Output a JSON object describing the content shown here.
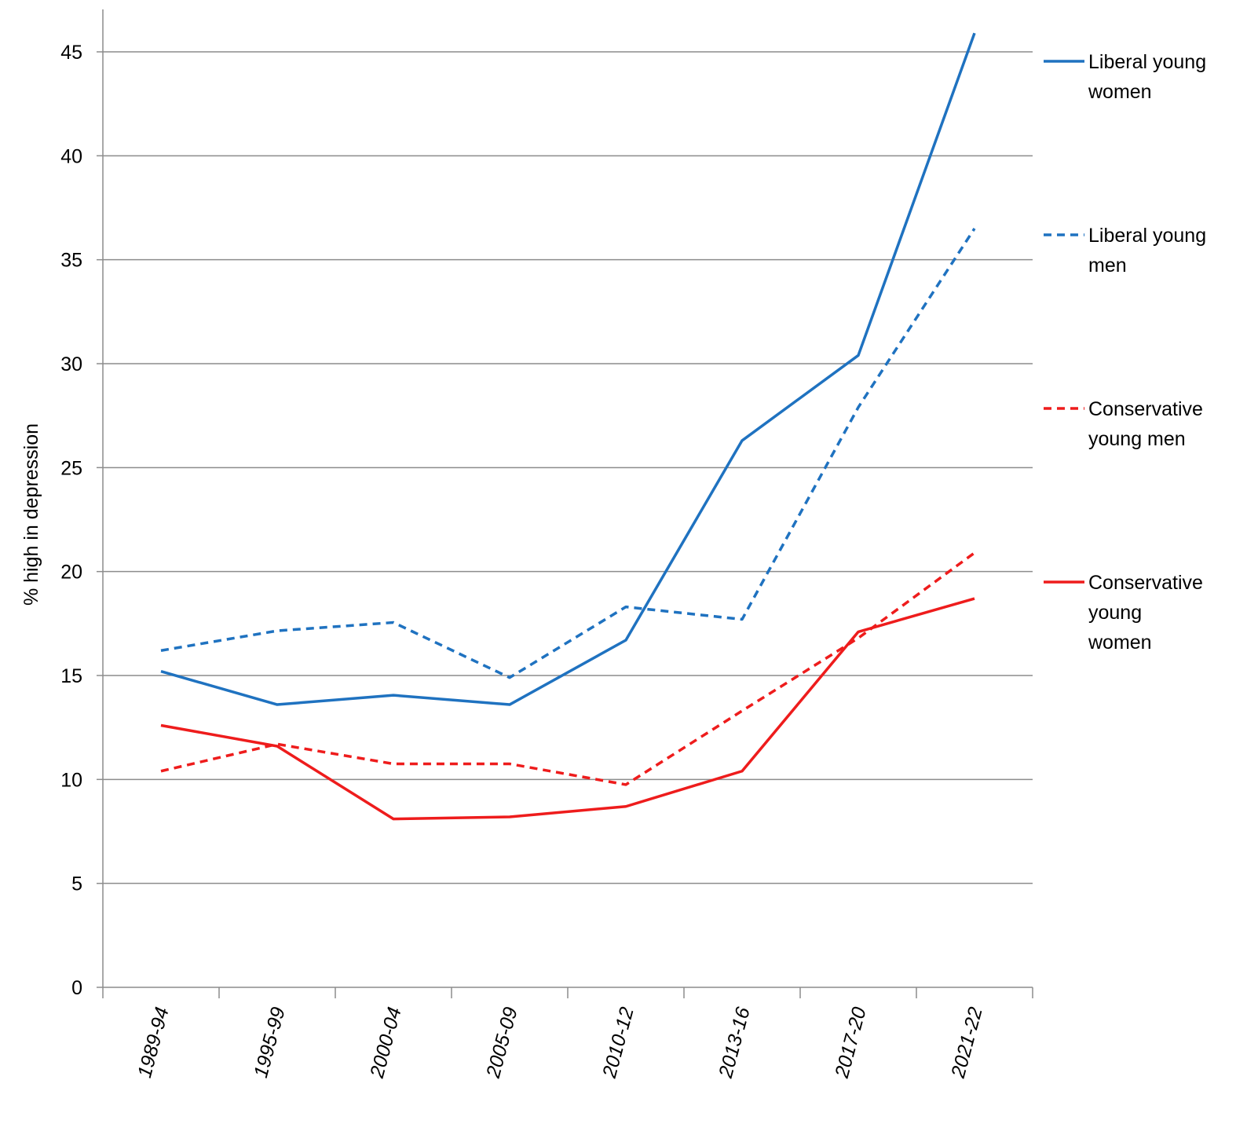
{
  "chart_data": {
    "type": "line",
    "title": "",
    "xlabel": "",
    "ylabel": "% high in depression",
    "ylim": [
      0,
      45
    ],
    "yticks": [
      0,
      5,
      10,
      15,
      20,
      25,
      30,
      35,
      40,
      45
    ],
    "grid": true,
    "legend_placement": "right",
    "categories": [
      "1989-94",
      "1995-99",
      "2000-04",
      "2005-09",
      "2010-12",
      "2013-16",
      "2017-20",
      "2021-22"
    ],
    "series": [
      {
        "name": "Liberal young women",
        "color": "#1f72c0",
        "dashed": false,
        "values": [
          15.2,
          13.6,
          14.05,
          13.6,
          16.7,
          26.3,
          30.4,
          45.9
        ]
      },
      {
        "name": "Liberal young men",
        "color": "#1f72c0",
        "dashed": true,
        "values": [
          16.2,
          17.15,
          17.55,
          14.9,
          18.3,
          17.7,
          27.9,
          36.5
        ]
      },
      {
        "name": "Conservative young men",
        "color": "#ee1c1c",
        "dashed": true,
        "values": [
          10.4,
          11.7,
          10.75,
          10.75,
          9.75,
          13.3,
          16.8,
          20.9
        ]
      },
      {
        "name": "Conservative young women",
        "color": "#ee1c1c",
        "dashed": false,
        "values": [
          12.6,
          11.6,
          8.1,
          8.2,
          8.7,
          10.4,
          17.1,
          18.7
        ]
      }
    ]
  }
}
